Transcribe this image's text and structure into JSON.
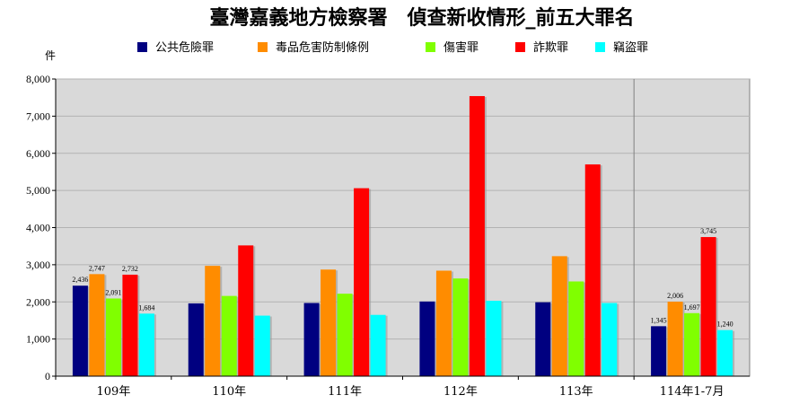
{
  "chart_data": {
    "type": "bar",
    "title": "臺灣嘉義地方檢察署　偵查新收情形_前五大罪名",
    "ylabel": "件",
    "ylim": [
      0,
      8000
    ],
    "yticks": [
      "0",
      "1,000",
      "2,000",
      "3,000",
      "4,000",
      "5,000",
      "6,000",
      "7,000",
      "8,000"
    ],
    "categories": [
      "109年",
      "110年",
      "111年",
      "112年",
      "113年",
      "114年1-7月"
    ],
    "legend_position": "top",
    "grid": true,
    "series": [
      {
        "name": "公共危險罪",
        "color": "#000080",
        "values": [
          2436,
          1960,
          1970,
          2010,
          1990,
          1345
        ]
      },
      {
        "name": "毒品危害防制條例",
        "color": "#FF8C00",
        "values": [
          2747,
          2970,
          2870,
          2840,
          3230,
          2006
        ]
      },
      {
        "name": "傷害罪",
        "color": "#80FF00",
        "values": [
          2091,
          2160,
          2220,
          2630,
          2550,
          1697
        ]
      },
      {
        "name": "詐欺罪",
        "color": "#FF0000",
        "values": [
          2732,
          3520,
          5060,
          7540,
          5700,
          3745
        ]
      },
      {
        "name": "竊盜罪",
        "color": "#00FFFF",
        "values": [
          1684,
          1630,
          1650,
          2030,
          1970,
          1240
        ]
      }
    ],
    "data_labels": [
      {
        "category": 0,
        "series": 0,
        "text": "2,436"
      },
      {
        "category": 0,
        "series": 1,
        "text": "2,747"
      },
      {
        "category": 0,
        "series": 2,
        "text": "2,091"
      },
      {
        "category": 0,
        "series": 3,
        "text": "2,732"
      },
      {
        "category": 0,
        "series": 4,
        "text": "1,684"
      },
      {
        "category": 5,
        "series": 0,
        "text": "1,345"
      },
      {
        "category": 5,
        "series": 1,
        "text": "2,006"
      },
      {
        "category": 5,
        "series": 2,
        "text": "1,697"
      },
      {
        "category": 5,
        "series": 3,
        "text": "3,745"
      },
      {
        "category": 5,
        "series": 4,
        "text": "1,240"
      }
    ]
  }
}
